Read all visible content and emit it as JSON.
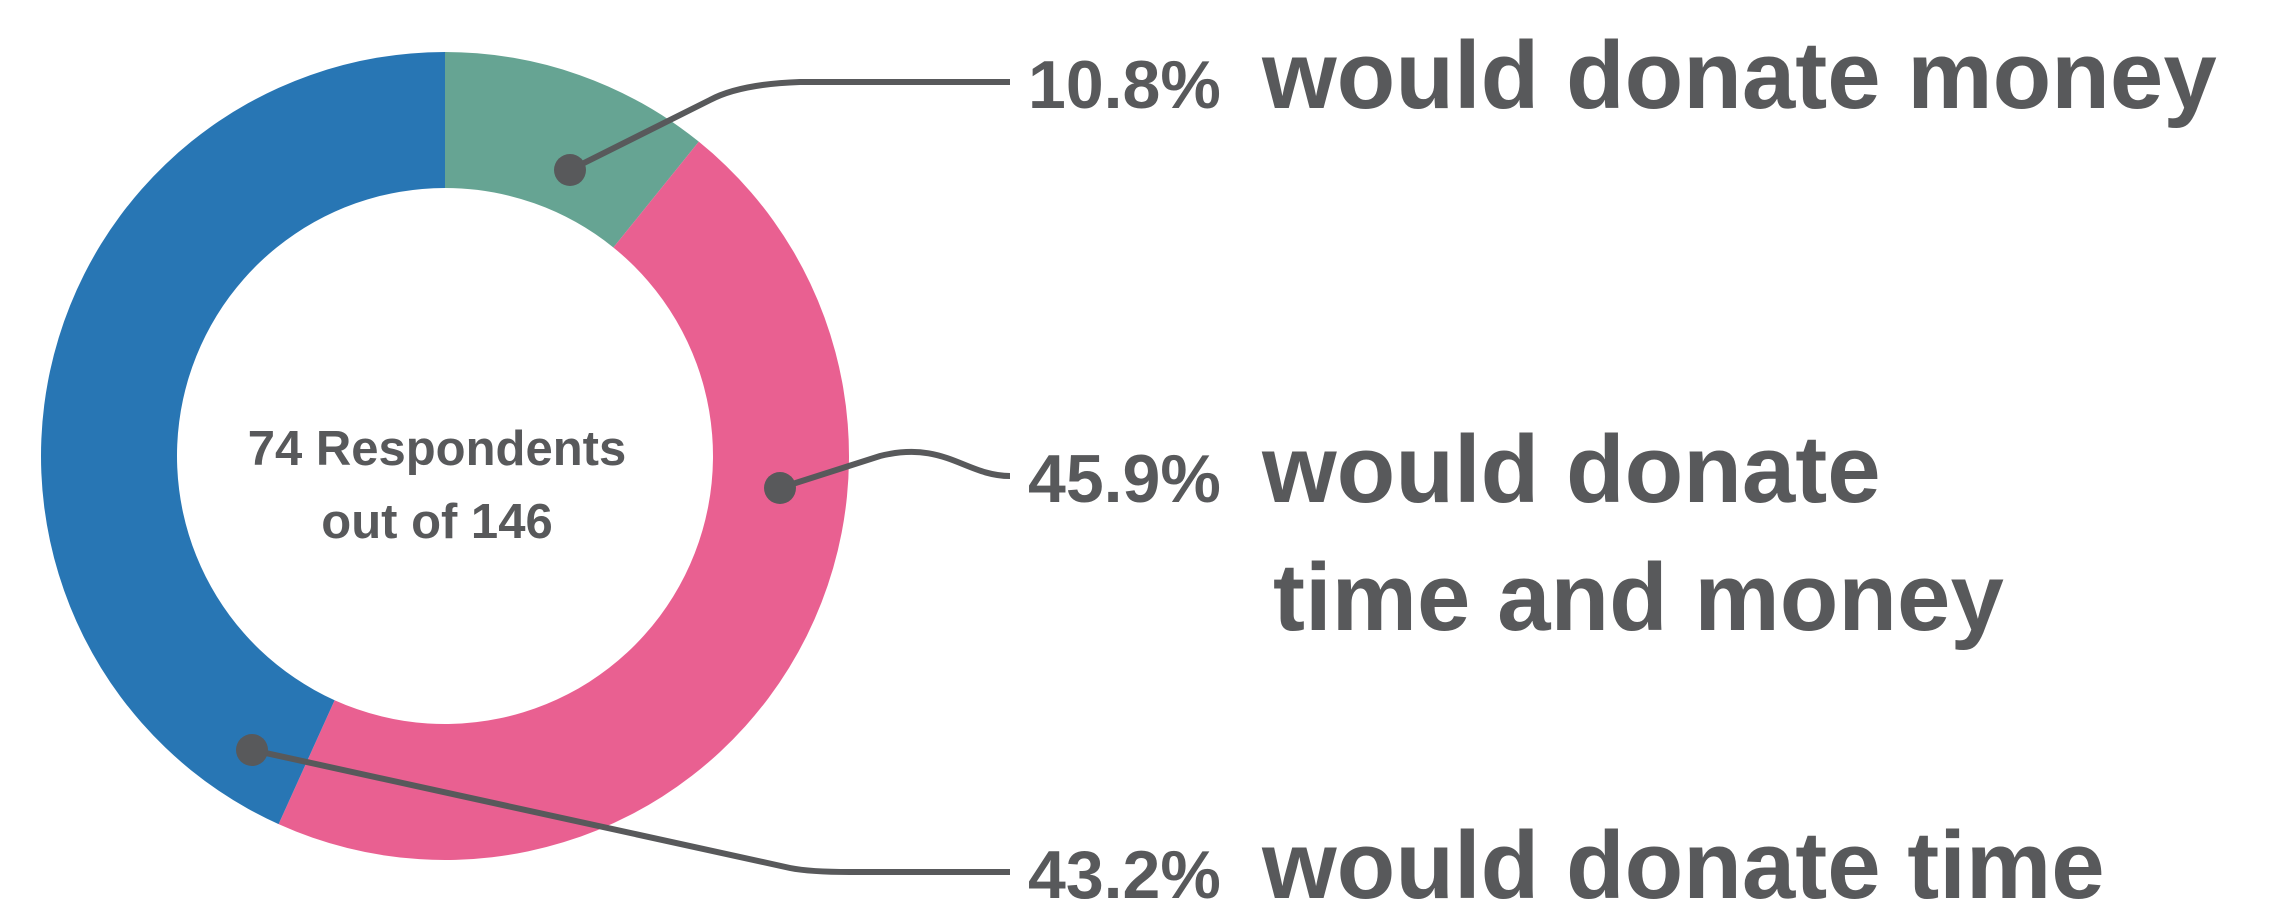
{
  "chart_data": {
    "type": "pie",
    "center_text": [
      "74 Respondents",
      "out of 146"
    ],
    "slices": [
      {
        "pct_label": "10.8%",
        "value": 10.8,
        "label_lines": [
          "would donate money"
        ],
        "color": "#66a493"
      },
      {
        "pct_label": "45.9%",
        "value": 45.9,
        "label_lines": [
          "would donate",
          "time and money"
        ],
        "color": "#e96091"
      },
      {
        "pct_label": "43.2%",
        "value": 43.2,
        "label_lines": [
          "would donate time"
        ],
        "color": "#2876b4"
      }
    ]
  }
}
